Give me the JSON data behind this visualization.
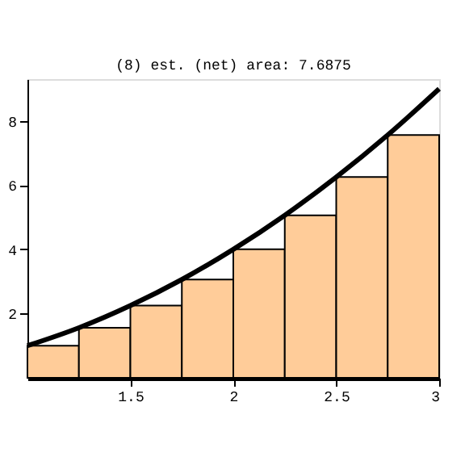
{
  "chart_data": {
    "type": "bar",
    "title": "(8)     est. (net) area: 7.6875",
    "x": [
      1.125,
      1.375,
      1.625,
      1.875,
      2.125,
      2.375,
      2.625,
      2.875
    ],
    "series": [
      {
        "color": "#ffcc99",
        "values": [
          1,
          1.56,
          2.25,
          3.06,
          4,
          5.06,
          6.25,
          7.56
        ]
      },
      {
        "type": "line",
        "color": "#000000",
        "x": [
          1,
          1.25,
          1.5,
          1.75,
          2,
          2.25,
          2.5,
          2.75,
          3
        ],
        "values": [
          1,
          1.56,
          2.25,
          3.06,
          4,
          5.06,
          6.25,
          7.56,
          9
        ]
      }
    ],
    "xlim": [
      1,
      3
    ],
    "xticks": [
      1.5,
      2,
      2.5,
      3
    ],
    "ylim": [
      0,
      9.3
    ],
    "yticks": [
      2,
      4,
      6,
      8
    ],
    "grid": false,
    "marker": "none",
    "line_style": "solid"
  }
}
